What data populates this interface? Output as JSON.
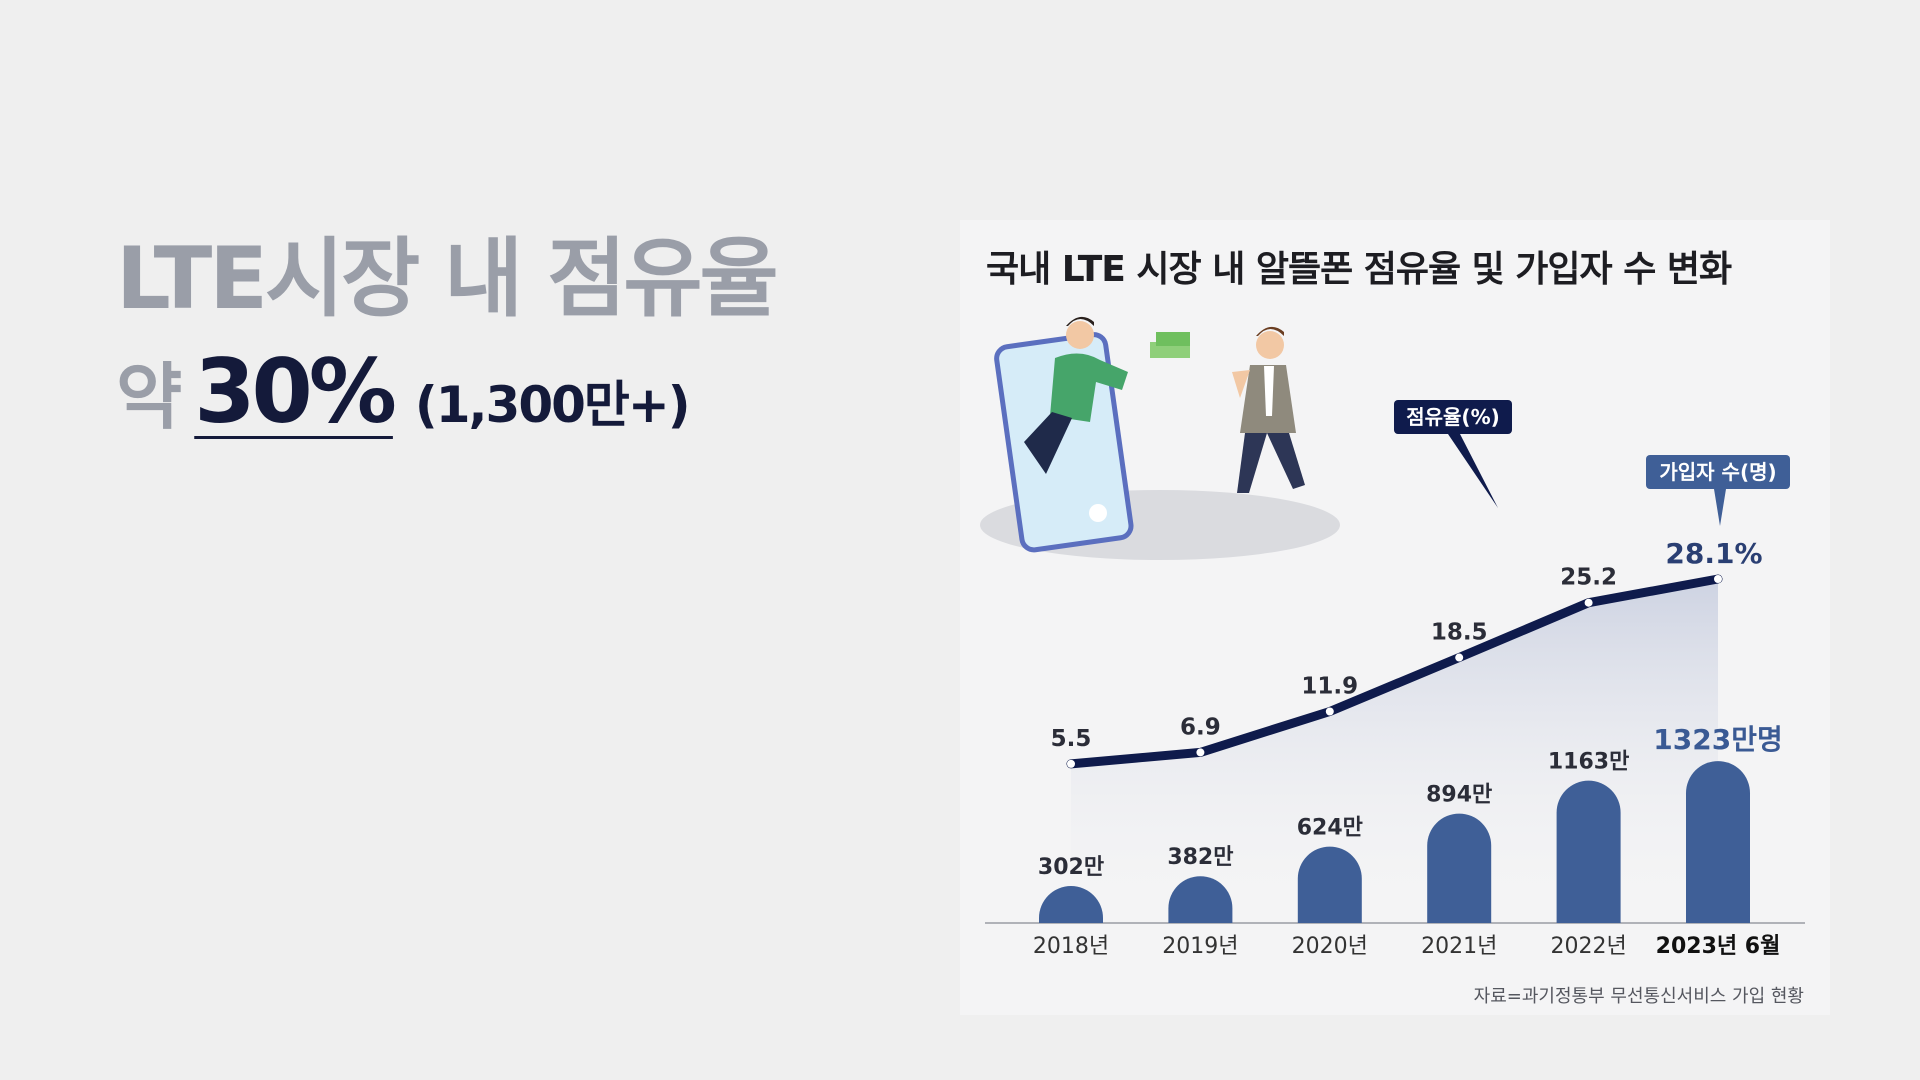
{
  "headline": "LTE시장 내 점유율",
  "subline": {
    "approx": "약",
    "percent": "30%",
    "paren": "(1,300만+)"
  },
  "card": {
    "title": "국내 LTE 시장 내 알뜰폰 점유율 및 가입자 수 변화",
    "source": "자료=과기정통부 무선통신서비스 가입 현황",
    "share_tag": "점유율(%)",
    "subs_tag": "가입자 수(명)"
  },
  "colors": {
    "bar": "#3f5f97",
    "line": "#0f1b4c",
    "tag_bg": "#0f1b4c",
    "tag2_bg": "#3f5f97"
  },
  "chart_data": {
    "type": "bar",
    "title": "국내 LTE 시장 내 알뜰폰 점유율 및 가입자 수 변화",
    "categories": [
      "2018년",
      "2019년",
      "2020년",
      "2021년",
      "2022년",
      "2023년 6월"
    ],
    "series": [
      {
        "name": "가입자 수(명)",
        "type": "bar",
        "unit": "만명",
        "values": [
          302,
          382,
          624,
          894,
          1163,
          1323
        ],
        "labels": [
          "302만",
          "382만",
          "624만",
          "894만",
          "1163만",
          "1323만명"
        ]
      },
      {
        "name": "점유율(%)",
        "type": "line",
        "unit": "%",
        "values": [
          5.5,
          6.9,
          11.9,
          18.5,
          25.2,
          28.1
        ],
        "labels": [
          "5.5",
          "6.9",
          "11.9",
          "18.5",
          "25.2",
          "28.1%"
        ]
      }
    ]
  }
}
